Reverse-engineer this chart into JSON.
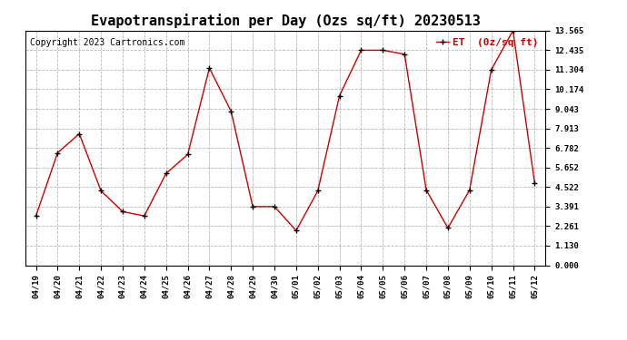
{
  "title": "Evapotranspiration per Day (Ozs sq/ft) 20230513",
  "copyright": "Copyright 2023 Cartronics.com",
  "legend_label": "ET  (0z/sq ft)",
  "x_labels": [
    "04/19",
    "04/20",
    "04/21",
    "04/22",
    "04/23",
    "04/24",
    "04/25",
    "04/26",
    "04/27",
    "04/28",
    "04/29",
    "04/30",
    "05/01",
    "05/02",
    "05/03",
    "05/04",
    "05/05",
    "05/06",
    "05/07",
    "05/08",
    "05/09",
    "05/10",
    "05/11",
    "05/12"
  ],
  "y_values": [
    2.85,
    6.5,
    7.6,
    4.3,
    3.1,
    2.85,
    5.3,
    6.4,
    11.4,
    8.9,
    3.39,
    3.39,
    2.0,
    4.3,
    9.8,
    12.43,
    12.43,
    12.2,
    4.35,
    2.15,
    4.35,
    11.3,
    13.565,
    4.75
  ],
  "line_color": "#cc0000",
  "marker_color": "#000000",
  "background_color": "#ffffff",
  "grid_color": "#999999",
  "y_ticks": [
    0.0,
    1.13,
    2.261,
    3.391,
    4.522,
    5.652,
    6.782,
    7.913,
    9.043,
    10.174,
    11.304,
    12.435,
    13.565
  ],
  "ylim": [
    0.0,
    13.565
  ],
  "title_fontsize": 11,
  "copyright_fontsize": 7,
  "legend_fontsize": 8,
  "axis_fontsize": 6.5
}
